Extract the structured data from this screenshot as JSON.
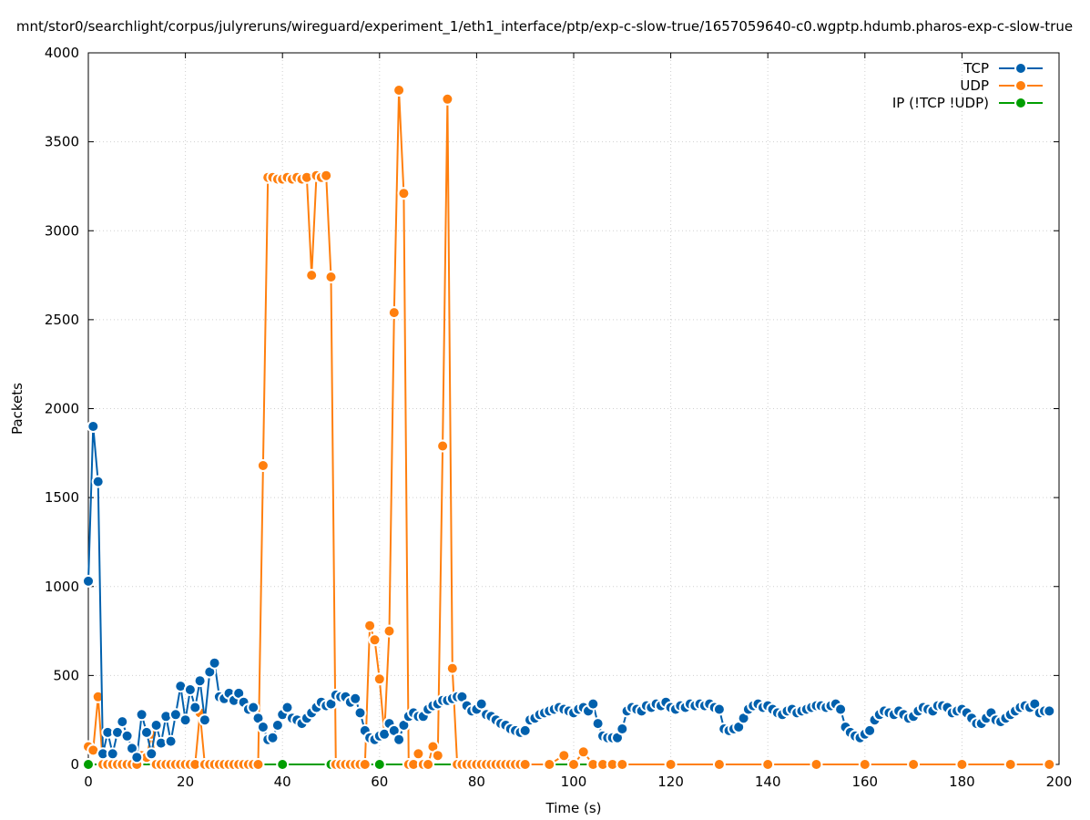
{
  "chart_data": {
    "type": "line",
    "title": "mnt/stor0/searchlight/corpus/julyreruns/wireguard/experiment_1/eth1_interface/ptp/exp-c-slow-true/1657059640-c0.wgptp.hdumb.pharos-exp-c-slow-true",
    "xlabel": "Time (s)",
    "ylabel": "Packets",
    "xlim": [
      0,
      200
    ],
    "ylim": [
      0,
      4000
    ],
    "x_ticks": [
      0,
      20,
      40,
      60,
      80,
      100,
      120,
      140,
      160,
      180,
      200
    ],
    "y_ticks": [
      0,
      500,
      1000,
      1500,
      2000,
      2500,
      3000,
      3500,
      4000
    ],
    "grid": true,
    "legend_position": "top-right",
    "series": [
      {
        "name": "TCP",
        "color": "#0060ad",
        "points": [
          [
            0,
            1030
          ],
          [
            1,
            1900
          ],
          [
            2,
            1590
          ],
          [
            3,
            60
          ],
          [
            4,
            180
          ],
          [
            5,
            60
          ],
          [
            6,
            180
          ],
          [
            7,
            240
          ],
          [
            8,
            160
          ],
          [
            9,
            90
          ],
          [
            10,
            40
          ],
          [
            11,
            280
          ],
          [
            12,
            180
          ],
          [
            13,
            60
          ],
          [
            14,
            220
          ],
          [
            15,
            120
          ],
          [
            16,
            270
          ],
          [
            17,
            130
          ],
          [
            18,
            280
          ],
          [
            19,
            440
          ],
          [
            20,
            250
          ],
          [
            21,
            420
          ],
          [
            22,
            320
          ],
          [
            23,
            470
          ],
          [
            24,
            250
          ],
          [
            25,
            520
          ],
          [
            26,
            570
          ],
          [
            27,
            380
          ],
          [
            28,
            370
          ],
          [
            29,
            400
          ],
          [
            30,
            360
          ],
          [
            31,
            400
          ],
          [
            32,
            350
          ],
          [
            33,
            310
          ],
          [
            34,
            320
          ],
          [
            35,
            260
          ],
          [
            36,
            210
          ],
          [
            37,
            140
          ],
          [
            38,
            150
          ],
          [
            39,
            220
          ],
          [
            40,
            280
          ],
          [
            41,
            320
          ],
          [
            42,
            260
          ],
          [
            43,
            250
          ],
          [
            44,
            230
          ],
          [
            45,
            260
          ],
          [
            46,
            290
          ],
          [
            47,
            320
          ],
          [
            48,
            350
          ],
          [
            49,
            330
          ],
          [
            50,
            340
          ],
          [
            51,
            390
          ],
          [
            52,
            380
          ],
          [
            53,
            380
          ],
          [
            54,
            350
          ],
          [
            55,
            370
          ],
          [
            56,
            290
          ],
          [
            57,
            190
          ],
          [
            58,
            150
          ],
          [
            59,
            140
          ],
          [
            60,
            160
          ],
          [
            61,
            170
          ],
          [
            62,
            230
          ],
          [
            63,
            190
          ],
          [
            64,
            140
          ],
          [
            65,
            220
          ],
          [
            66,
            270
          ],
          [
            67,
            290
          ],
          [
            68,
            270
          ],
          [
            69,
            270
          ],
          [
            70,
            310
          ],
          [
            71,
            330
          ],
          [
            72,
            340
          ],
          [
            73,
            360
          ],
          [
            74,
            360
          ],
          [
            75,
            370
          ],
          [
            76,
            380
          ],
          [
            77,
            380
          ],
          [
            78,
            330
          ],
          [
            79,
            300
          ],
          [
            80,
            310
          ],
          [
            81,
            340
          ],
          [
            82,
            280
          ],
          [
            83,
            270
          ],
          [
            84,
            250
          ],
          [
            85,
            230
          ],
          [
            86,
            220
          ],
          [
            87,
            200
          ],
          [
            88,
            190
          ],
          [
            89,
            180
          ],
          [
            90,
            190
          ],
          [
            91,
            250
          ],
          [
            92,
            260
          ],
          [
            93,
            280
          ],
          [
            94,
            290
          ],
          [
            95,
            300
          ],
          [
            96,
            310
          ],
          [
            97,
            320
          ],
          [
            98,
            310
          ],
          [
            99,
            300
          ],
          [
            100,
            290
          ],
          [
            101,
            310
          ],
          [
            102,
            320
          ],
          [
            103,
            300
          ],
          [
            104,
            340
          ],
          [
            105,
            230
          ],
          [
            106,
            160
          ],
          [
            107,
            150
          ],
          [
            108,
            150
          ],
          [
            109,
            150
          ],
          [
            110,
            200
          ],
          [
            111,
            300
          ],
          [
            112,
            320
          ],
          [
            113,
            310
          ],
          [
            114,
            300
          ],
          [
            115,
            330
          ],
          [
            116,
            320
          ],
          [
            117,
            340
          ],
          [
            118,
            330
          ],
          [
            119,
            350
          ],
          [
            120,
            320
          ],
          [
            121,
            310
          ],
          [
            122,
            330
          ],
          [
            123,
            320
          ],
          [
            124,
            340
          ],
          [
            125,
            330
          ],
          [
            126,
            340
          ],
          [
            127,
            330
          ],
          [
            128,
            340
          ],
          [
            129,
            320
          ],
          [
            130,
            310
          ],
          [
            131,
            200
          ],
          [
            132,
            190
          ],
          [
            133,
            200
          ],
          [
            134,
            210
          ],
          [
            135,
            260
          ],
          [
            136,
            310
          ],
          [
            137,
            330
          ],
          [
            138,
            340
          ],
          [
            139,
            320
          ],
          [
            140,
            330
          ],
          [
            141,
            310
          ],
          [
            142,
            290
          ],
          [
            143,
            280
          ],
          [
            144,
            300
          ],
          [
            145,
            310
          ],
          [
            146,
            290
          ],
          [
            147,
            300
          ],
          [
            148,
            310
          ],
          [
            149,
            320
          ],
          [
            150,
            330
          ],
          [
            151,
            330
          ],
          [
            152,
            320
          ],
          [
            153,
            330
          ],
          [
            154,
            340
          ],
          [
            155,
            310
          ],
          [
            156,
            210
          ],
          [
            157,
            180
          ],
          [
            158,
            160
          ],
          [
            159,
            150
          ],
          [
            160,
            170
          ],
          [
            161,
            190
          ],
          [
            162,
            250
          ],
          [
            163,
            280
          ],
          [
            164,
            300
          ],
          [
            165,
            290
          ],
          [
            166,
            280
          ],
          [
            167,
            300
          ],
          [
            168,
            280
          ],
          [
            169,
            260
          ],
          [
            170,
            270
          ],
          [
            171,
            300
          ],
          [
            172,
            320
          ],
          [
            173,
            310
          ],
          [
            174,
            300
          ],
          [
            175,
            330
          ],
          [
            176,
            330
          ],
          [
            177,
            320
          ],
          [
            178,
            290
          ],
          [
            179,
            300
          ],
          [
            180,
            310
          ],
          [
            181,
            290
          ],
          [
            182,
            260
          ],
          [
            183,
            230
          ],
          [
            184,
            230
          ],
          [
            185,
            260
          ],
          [
            186,
            290
          ],
          [
            187,
            250
          ],
          [
            188,
            240
          ],
          [
            189,
            260
          ],
          [
            190,
            280
          ],
          [
            191,
            300
          ],
          [
            192,
            320
          ],
          [
            193,
            330
          ],
          [
            194,
            320
          ],
          [
            195,
            340
          ],
          [
            196,
            290
          ],
          [
            197,
            300
          ],
          [
            198,
            300
          ]
        ]
      },
      {
        "name": "UDP",
        "color": "#ff7f0e",
        "points": [
          [
            0,
            100
          ],
          [
            1,
            80
          ],
          [
            2,
            380
          ],
          [
            3,
            0
          ],
          [
            4,
            0
          ],
          [
            5,
            0
          ],
          [
            6,
            0
          ],
          [
            7,
            0
          ],
          [
            8,
            0
          ],
          [
            9,
            0
          ],
          [
            10,
            0
          ],
          [
            11,
            50
          ],
          [
            12,
            40
          ],
          [
            13,
            170
          ],
          [
            14,
            0
          ],
          [
            15,
            0
          ],
          [
            16,
            0
          ],
          [
            17,
            0
          ],
          [
            18,
            0
          ],
          [
            19,
            0
          ],
          [
            20,
            0
          ],
          [
            21,
            0
          ],
          [
            22,
            0
          ],
          [
            23,
            290
          ],
          [
            24,
            0
          ],
          [
            25,
            0
          ],
          [
            26,
            0
          ],
          [
            27,
            0
          ],
          [
            28,
            0
          ],
          [
            29,
            0
          ],
          [
            30,
            0
          ],
          [
            31,
            0
          ],
          [
            32,
            0
          ],
          [
            33,
            0
          ],
          [
            34,
            0
          ],
          [
            35,
            0
          ],
          [
            36,
            1680
          ],
          [
            37,
            3300
          ],
          [
            38,
            3300
          ],
          [
            39,
            3290
          ],
          [
            40,
            3290
          ],
          [
            41,
            3300
          ],
          [
            42,
            3290
          ],
          [
            43,
            3300
          ],
          [
            44,
            3290
          ],
          [
            45,
            3300
          ],
          [
            46,
            2750
          ],
          [
            47,
            3310
          ],
          [
            48,
            3300
          ],
          [
            49,
            3310
          ],
          [
            50,
            2740
          ],
          [
            51,
            0
          ],
          [
            52,
            0
          ],
          [
            53,
            0
          ],
          [
            54,
            0
          ],
          [
            55,
            0
          ],
          [
            56,
            0
          ],
          [
            57,
            0
          ],
          [
            58,
            780
          ],
          [
            59,
            700
          ],
          [
            60,
            480
          ],
          [
            61,
            170
          ],
          [
            62,
            750
          ],
          [
            63,
            2540
          ],
          [
            64,
            3790
          ],
          [
            65,
            3210
          ],
          [
            66,
            0
          ],
          [
            67,
            0
          ],
          [
            68,
            60
          ],
          [
            69,
            0
          ],
          [
            70,
            0
          ],
          [
            71,
            100
          ],
          [
            72,
            50
          ],
          [
            73,
            1790
          ],
          [
            74,
            3740
          ],
          [
            75,
            540
          ],
          [
            76,
            0
          ],
          [
            77,
            0
          ],
          [
            78,
            0
          ],
          [
            79,
            0
          ],
          [
            80,
            0
          ],
          [
            81,
            0
          ],
          [
            82,
            0
          ],
          [
            83,
            0
          ],
          [
            84,
            0
          ],
          [
            85,
            0
          ],
          [
            86,
            0
          ],
          [
            87,
            0
          ],
          [
            88,
            0
          ],
          [
            89,
            0
          ],
          [
            90,
            0
          ],
          [
            95,
            0
          ],
          [
            98,
            50
          ],
          [
            100,
            0
          ],
          [
            102,
            70
          ],
          [
            104,
            0
          ],
          [
            106,
            0
          ],
          [
            108,
            0
          ],
          [
            110,
            0
          ],
          [
            120,
            0
          ],
          [
            130,
            0
          ],
          [
            140,
            0
          ],
          [
            150,
            0
          ],
          [
            160,
            0
          ],
          [
            170,
            0
          ],
          [
            180,
            0
          ],
          [
            190,
            0
          ],
          [
            198,
            0
          ]
        ]
      },
      {
        "name": "IP (!TCP  !UDP)",
        "color": "#009e00",
        "points": [
          [
            0,
            0
          ],
          [
            10,
            0
          ],
          [
            20,
            0
          ],
          [
            30,
            0
          ],
          [
            40,
            0
          ],
          [
            50,
            0
          ],
          [
            60,
            0
          ],
          [
            70,
            0
          ],
          [
            80,
            0
          ],
          [
            90,
            0
          ],
          [
            100,
            0
          ],
          [
            110,
            0
          ],
          [
            120,
            0
          ],
          [
            130,
            0
          ],
          [
            140,
            0
          ],
          [
            150,
            0
          ],
          [
            160,
            0
          ],
          [
            170,
            0
          ],
          [
            180,
            0
          ],
          [
            190,
            0
          ],
          [
            198,
            0
          ]
        ]
      }
    ]
  }
}
